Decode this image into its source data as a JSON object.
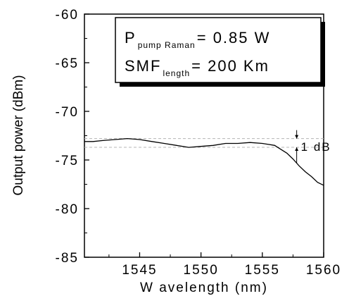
{
  "chart_data": {
    "type": "line",
    "xlabel": "W avelength (nm)",
    "ylabel": "Output power (dBm)",
    "xlim": [
      1540.5,
      1560
    ],
    "ylim": [
      -85,
      -60
    ],
    "xticks": [
      1545,
      1550,
      1555,
      1560
    ],
    "xtick_labels": [
      "1545",
      "1550",
      "1555",
      "1560"
    ],
    "yticks": [
      -60,
      -65,
      -70,
      -75,
      -80,
      -85
    ],
    "ytick_labels": [
      "-60",
      "-65",
      "-70",
      "-75",
      "-80",
      "-85"
    ],
    "grid": false,
    "series": [
      {
        "x": [
          1540.5,
          1541.2,
          1542.0,
          1543.0,
          1544.0,
          1545.0,
          1546.0,
          1547.0,
          1548.0,
          1549.0,
          1550.0,
          1551.0,
          1552.0,
          1553.0,
          1554.0,
          1555.0,
          1555.5,
          1556.0,
          1556.5,
          1557.0,
          1557.5,
          1558.0,
          1558.5,
          1559.0,
          1559.5,
          1560.0
        ],
        "y": [
          -73.1,
          -73.1,
          -73.0,
          -72.9,
          -72.8,
          -72.9,
          -73.1,
          -73.3,
          -73.5,
          -73.7,
          -73.6,
          -73.5,
          -73.3,
          -73.3,
          -73.2,
          -73.3,
          -73.4,
          -73.5,
          -73.9,
          -74.3,
          -74.9,
          -75.6,
          -76.2,
          -76.7,
          -77.3,
          -77.6
        ]
      }
    ],
    "reference_lines": [
      {
        "y": -72.8,
        "style": "dashed",
        "color": "#b4b4b4"
      },
      {
        "y": -73.7,
        "style": "dashed",
        "color": "#b4b4b4"
      }
    ],
    "annotations": {
      "box_lines": [
        {
          "main": "P",
          "sub": "pump Raman",
          "tail": "= 0.85  W"
        },
        {
          "main": "SMF",
          "sub": "length",
          "tail": "= 200  Km"
        }
      ],
      "delta_label": "1 dB",
      "delta_x": 1557.8,
      "delta_range": [
        -72.8,
        -73.7
      ]
    }
  }
}
